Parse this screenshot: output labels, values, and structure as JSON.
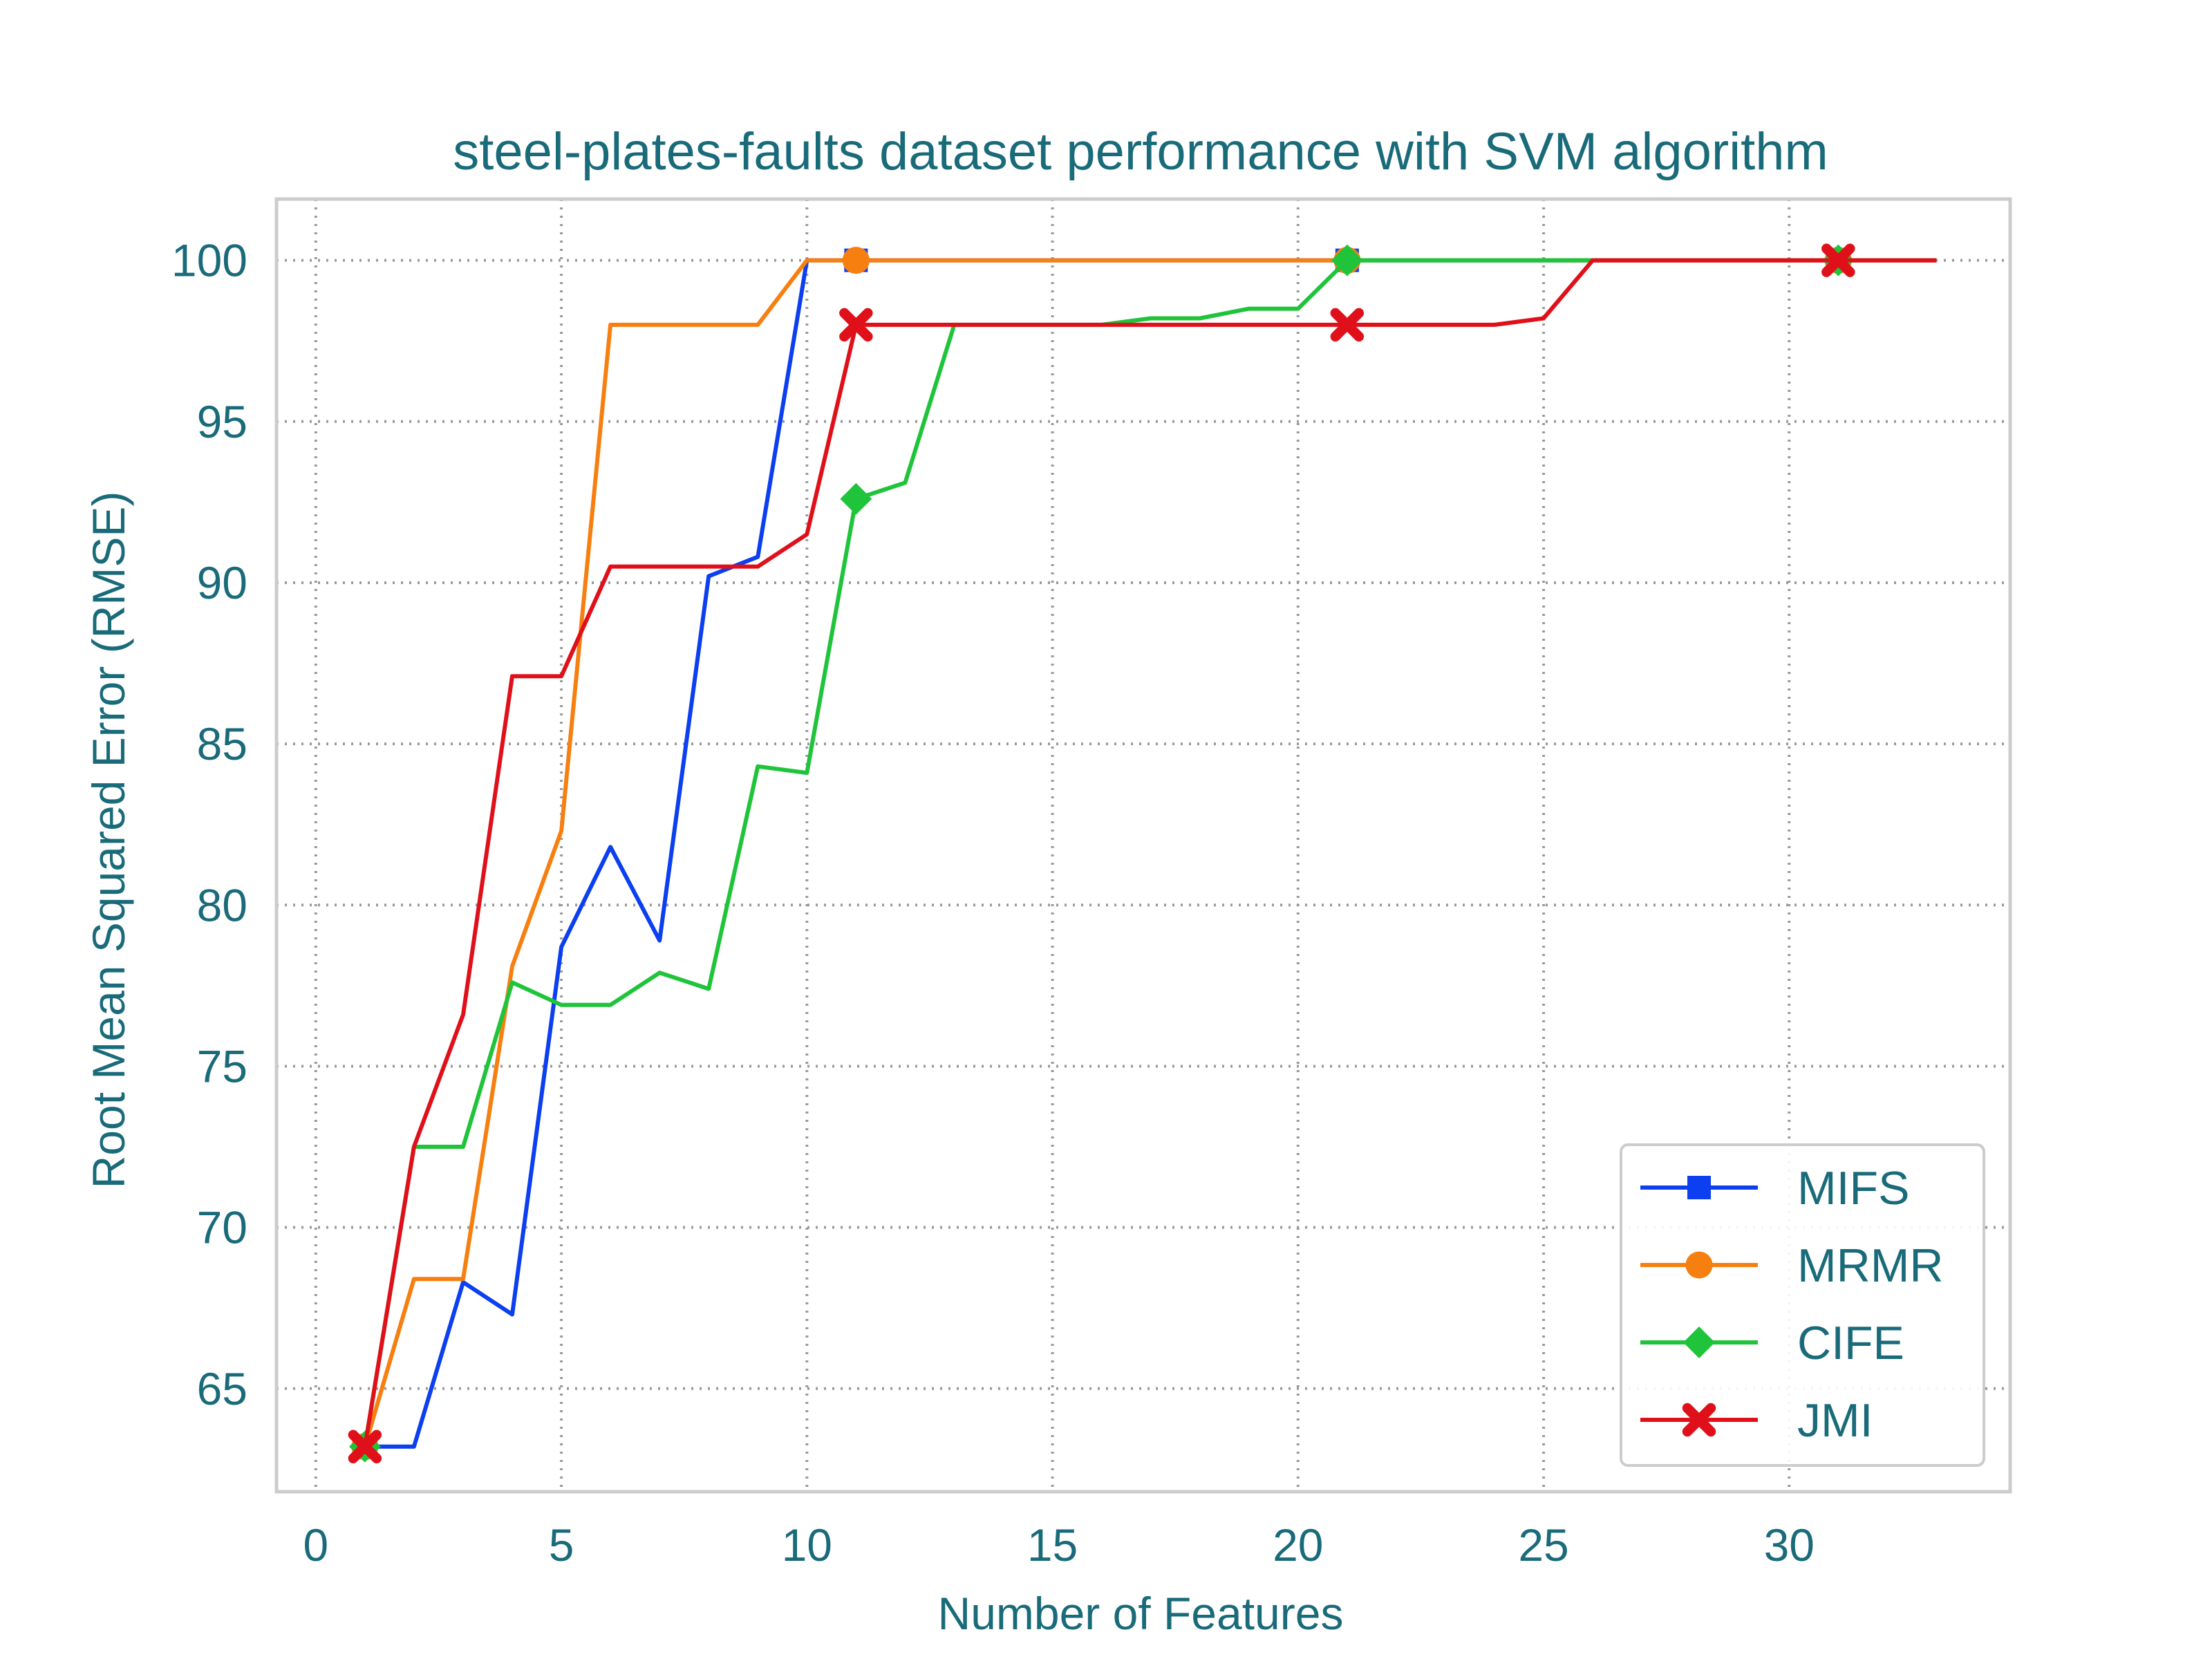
{
  "chart_data": {
    "type": "line",
    "title": "steel-plates-faults dataset performance with SVM algorithm",
    "xlabel": "Number of Features",
    "ylabel": "Root Mean Squared Error (RMSE)",
    "xlim": [
      -0.8,
      34.5
    ],
    "ylim": [
      61.8,
      101.9
    ],
    "xticks": [
      0,
      5,
      10,
      15,
      20,
      25,
      30
    ],
    "yticks": [
      65,
      70,
      75,
      80,
      85,
      90,
      95,
      100
    ],
    "grid": true,
    "legend_position": "lower-right",
    "text_color": "#1a6b7a",
    "series": [
      {
        "name": "MIFS",
        "color": "#0b3ff0",
        "marker": "square",
        "x": [
          1,
          2,
          3,
          4,
          5,
          6,
          7,
          8,
          9,
          10,
          11,
          12,
          13,
          14,
          15,
          16,
          17,
          18,
          19,
          20,
          21,
          22,
          23,
          24,
          25,
          26,
          27,
          28,
          29,
          30,
          31,
          32,
          33
        ],
        "y": [
          63.2,
          63.2,
          68.3,
          67.3,
          78.7,
          81.8,
          78.9,
          90.2,
          90.8,
          100.0,
          100.0,
          100.0,
          100.0,
          100.0,
          100.0,
          100.0,
          100.0,
          100.0,
          100.0,
          100.0,
          100.0,
          100.0,
          100.0,
          100.0,
          100.0,
          100.0,
          100.0,
          100.0,
          100.0,
          100.0,
          100.0,
          100.0,
          100.0
        ],
        "marker_x": [
          1,
          11,
          21,
          31
        ]
      },
      {
        "name": "MRMR",
        "color": "#f77f10",
        "marker": "circle",
        "x": [
          1,
          2,
          3,
          4,
          5,
          6,
          7,
          8,
          9,
          10,
          11,
          12,
          13,
          14,
          15,
          16,
          17,
          18,
          19,
          20,
          21,
          22,
          23,
          24,
          25,
          26,
          27,
          28,
          29,
          30,
          31,
          32,
          33
        ],
        "y": [
          63.2,
          68.4,
          68.4,
          78.1,
          82.3,
          98.0,
          98.0,
          98.0,
          98.0,
          100.0,
          100.0,
          100.0,
          100.0,
          100.0,
          100.0,
          100.0,
          100.0,
          100.0,
          100.0,
          100.0,
          100.0,
          100.0,
          100.0,
          100.0,
          100.0,
          100.0,
          100.0,
          100.0,
          100.0,
          100.0,
          100.0,
          100.0,
          100.0
        ],
        "marker_x": [
          1,
          11,
          21,
          31
        ]
      },
      {
        "name": "CIFE",
        "color": "#1fc43a",
        "marker": "diamond",
        "x": [
          1,
          2,
          3,
          4,
          5,
          6,
          7,
          8,
          9,
          10,
          11,
          12,
          13,
          14,
          15,
          16,
          17,
          18,
          19,
          20,
          21,
          22,
          23,
          24,
          25,
          26,
          27,
          28,
          29,
          30,
          31,
          32,
          33
        ],
        "y": [
          63.2,
          72.5,
          72.5,
          77.6,
          76.9,
          76.9,
          77.9,
          77.4,
          84.3,
          84.1,
          92.6,
          93.1,
          98.0,
          98.0,
          98.0,
          98.0,
          98.2,
          98.2,
          98.5,
          98.5,
          100.0,
          100.0,
          100.0,
          100.0,
          100.0,
          100.0,
          100.0,
          100.0,
          100.0,
          100.0,
          100.0,
          100.0,
          100.0
        ],
        "marker_x": [
          1,
          11,
          21,
          31
        ]
      },
      {
        "name": "JMI",
        "color": "#e0101a",
        "marker": "x",
        "x": [
          1,
          2,
          3,
          4,
          5,
          6,
          7,
          8,
          9,
          10,
          11,
          12,
          13,
          14,
          15,
          16,
          17,
          18,
          19,
          20,
          21,
          22,
          23,
          24,
          25,
          26,
          27,
          28,
          29,
          30,
          31,
          32,
          33
        ],
        "y": [
          63.2,
          72.5,
          76.6,
          87.1,
          87.1,
          90.5,
          90.5,
          90.5,
          90.5,
          91.5,
          98.0,
          98.0,
          98.0,
          98.0,
          98.0,
          98.0,
          98.0,
          98.0,
          98.0,
          98.0,
          98.0,
          98.0,
          98.0,
          98.0,
          98.2,
          100.0,
          100.0,
          100.0,
          100.0,
          100.0,
          100.0,
          100.0,
          100.0
        ],
        "marker_x": [
          1,
          11,
          21,
          31
        ]
      }
    ]
  }
}
